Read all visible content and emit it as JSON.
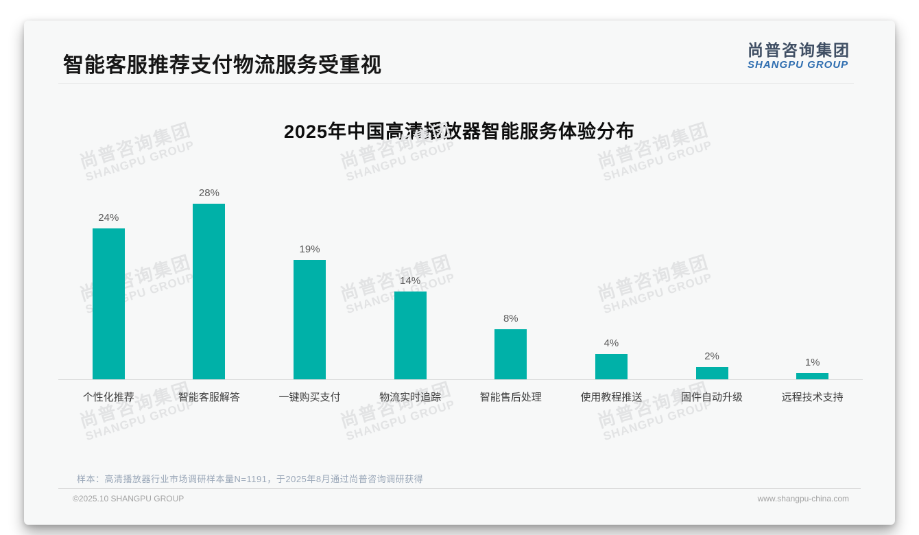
{
  "page": {
    "title": "智能客服推荐支付物流服务受重视"
  },
  "logo": {
    "cn": "尚普咨询集团",
    "en": "SHANGPU GROUP"
  },
  "chart_data": {
    "type": "bar",
    "title": "2025年中国高清播放器智能服务体验分布",
    "categories": [
      "个性化推荐",
      "智能客服解答",
      "一键购买支付",
      "物流实时追踪",
      "智能售后处理",
      "使用教程推送",
      "固件自动升级",
      "远程技术支持"
    ],
    "values": [
      24,
      28,
      19,
      14,
      8,
      4,
      2,
      1
    ],
    "value_labels": [
      "24%",
      "28%",
      "19%",
      "14%",
      "8%",
      "4%",
      "2%",
      "1%"
    ],
    "unit": "%",
    "bar_color": "#00b1a8",
    "ylim": [
      0,
      30
    ],
    "grid": false,
    "legend": "none",
    "xlabel": "",
    "ylabel": ""
  },
  "watermark": {
    "cn": "尚普咨询集团",
    "en": "SHANGPU GROUP"
  },
  "footnote": "样本：高清播放器行业市场调研样本量N=1191，于2025年8月通过尚普咨询调研获得",
  "footer": {
    "left": "©2025.10 SHANGPU GROUP",
    "right": "www.shangpu-china.com"
  },
  "colors": {
    "bar": "#00b1a8",
    "card_background": "#f7f8f8",
    "logo_cn": "#3f4e63",
    "logo_en": "#2f6eb0",
    "footnote_text": "#9aa7b8"
  }
}
